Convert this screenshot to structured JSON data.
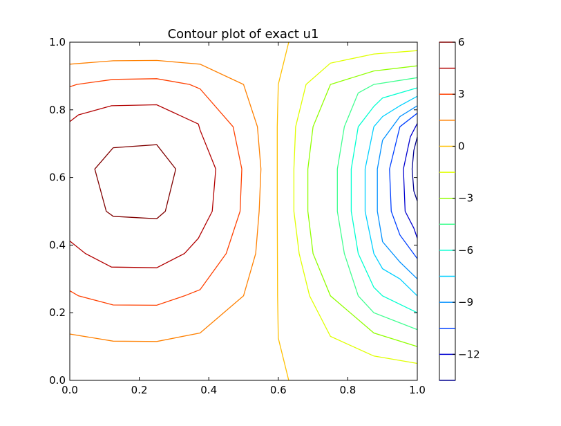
{
  "chart_data": {
    "type": "contour",
    "title": "Contour plot of exact u1",
    "xlabel": "",
    "ylabel": "",
    "xlim": [
      0.0,
      1.0
    ],
    "ylim": [
      0.0,
      1.0
    ],
    "x_ticks": [
      "0.0",
      "0.2",
      "0.4",
      "0.6",
      "0.8",
      "1.0"
    ],
    "y_ticks": [
      "0.0",
      "0.2",
      "0.4",
      "0.6",
      "0.8",
      "1.0"
    ],
    "colorbar": {
      "range": [
        -13.5,
        6.0
      ],
      "tick_labels": [
        {
          "value": 6,
          "label": "6"
        },
        {
          "value": 3,
          "label": "3"
        },
        {
          "value": 0,
          "label": "0"
        },
        {
          "value": -3,
          "label": "−3"
        },
        {
          "value": -6,
          "label": "−6"
        },
        {
          "value": -9,
          "label": "−9"
        },
        {
          "value": -12,
          "label": "−12"
        }
      ]
    },
    "levels": [
      {
        "value": 4.5,
        "color": "#b20000",
        "paths": [
          [
            [
              0.0,
              0.765
            ],
            [
              0.025,
              0.785
            ],
            [
              0.12,
              0.812
            ],
            [
              0.25,
              0.815
            ],
            [
              0.37,
              0.758
            ],
            [
              0.375,
              0.74
            ],
            [
              0.42,
              0.625
            ],
            [
              0.41,
              0.5
            ],
            [
              0.37,
              0.42
            ],
            [
              0.33,
              0.375
            ],
            [
              0.25,
              0.333
            ],
            [
              0.12,
              0.335
            ],
            [
              0.045,
              0.375
            ],
            [
              0.0,
              0.412
            ]
          ]
        ]
      },
      {
        "value": 6.0,
        "color": "#800000",
        "paths": [
          [
            [
              0.125,
              0.688
            ],
            [
              0.25,
              0.697
            ],
            [
              0.305,
              0.625
            ],
            [
              0.275,
              0.5
            ],
            [
              0.25,
              0.478
            ],
            [
              0.125,
              0.485
            ],
            [
              0.105,
              0.5
            ],
            [
              0.072,
              0.625
            ],
            [
              0.125,
              0.688
            ]
          ]
        ]
      },
      {
        "value": 3.0,
        "color": "#ff4000",
        "paths": [
          [
            [
              0.0,
              0.868
            ],
            [
              0.02,
              0.875
            ],
            [
              0.125,
              0.89
            ],
            [
              0.25,
              0.892
            ],
            [
              0.345,
              0.875
            ],
            [
              0.375,
              0.862
            ],
            [
              0.47,
              0.75
            ],
            [
              0.495,
              0.625
            ],
            [
              0.49,
              0.5
            ],
            [
              0.45,
              0.375
            ],
            [
              0.375,
              0.268
            ],
            [
              0.33,
              0.25
            ],
            [
              0.25,
              0.222
            ],
            [
              0.125,
              0.223
            ],
            [
              0.025,
              0.25
            ],
            [
              0.0,
              0.265
            ]
          ]
        ]
      },
      {
        "value": 1.5,
        "color": "#ff8000",
        "paths": [
          [
            [
              0.0,
              0.935
            ],
            [
              0.125,
              0.945
            ],
            [
              0.25,
              0.946
            ],
            [
              0.375,
              0.935
            ],
            [
              0.5,
              0.875
            ],
            [
              0.54,
              0.75
            ],
            [
              0.55,
              0.625
            ],
            [
              0.545,
              0.5
            ],
            [
              0.535,
              0.375
            ],
            [
              0.5,
              0.25
            ],
            [
              0.375,
              0.14
            ],
            [
              0.25,
              0.115
            ],
            [
              0.125,
              0.116
            ],
            [
              0.0,
              0.137
            ]
          ]
        ]
      },
      {
        "value": 0.0,
        "color": "#ffc000",
        "paths": [
          [
            [
              0.63,
              1.0
            ],
            [
              0.6,
              0.875
            ],
            [
              0.597,
              0.75
            ],
            [
              0.597,
              0.5
            ],
            [
              0.598,
              0.25
            ],
            [
              0.6,
              0.125
            ],
            [
              0.63,
              0.0
            ]
          ]
        ]
      },
      {
        "value": -1.5,
        "color": "#e0ff00",
        "paths": [
          [
            [
              1.0,
              0.975
            ],
            [
              0.875,
              0.965
            ],
            [
              0.75,
              0.938
            ],
            [
              0.68,
              0.875
            ],
            [
              0.65,
              0.75
            ],
            [
              0.645,
              0.625
            ],
            [
              0.645,
              0.5
            ],
            [
              0.66,
              0.375
            ],
            [
              0.69,
              0.25
            ],
            [
              0.75,
              0.13
            ],
            [
              0.875,
              0.072
            ],
            [
              1.0,
              0.05
            ]
          ]
        ]
      },
      {
        "value": -3.0,
        "color": "#90ff00",
        "paths": [
          [
            [
              1.0,
              0.93
            ],
            [
              0.875,
              0.915
            ],
            [
              0.75,
              0.875
            ],
            [
              0.7,
              0.75
            ],
            [
              0.685,
              0.625
            ],
            [
              0.685,
              0.5
            ],
            [
              0.7,
              0.375
            ],
            [
              0.75,
              0.25
            ],
            [
              0.875,
              0.14
            ],
            [
              1.0,
              0.1
            ]
          ]
        ]
      },
      {
        "value": -4.5,
        "color": "#40ff90",
        "paths": [
          [
            [
              1.0,
              0.895
            ],
            [
              0.875,
              0.875
            ],
            [
              0.83,
              0.85
            ],
            [
              0.79,
              0.75
            ],
            [
              0.77,
              0.625
            ],
            [
              0.77,
              0.5
            ],
            [
              0.79,
              0.375
            ],
            [
              0.83,
              0.25
            ],
            [
              0.875,
              0.2
            ],
            [
              1.0,
              0.15
            ]
          ]
        ]
      },
      {
        "value": -6.0,
        "color": "#00ffd0",
        "paths": [
          [
            [
              1.0,
              0.865
            ],
            [
              0.9,
              0.835
            ],
            [
              0.875,
              0.81
            ],
            [
              0.83,
              0.75
            ],
            [
              0.81,
              0.625
            ],
            [
              0.81,
              0.5
            ],
            [
              0.83,
              0.375
            ],
            [
              0.875,
              0.275
            ],
            [
              0.9,
              0.25
            ],
            [
              1.0,
              0.2
            ]
          ]
        ]
      },
      {
        "value": -7.5,
        "color": "#00d0ff",
        "paths": [
          [
            [
              1.0,
              0.84
            ],
            [
              0.95,
              0.812
            ],
            [
              0.9,
              0.78
            ],
            [
              0.875,
              0.75
            ],
            [
              0.85,
              0.625
            ],
            [
              0.85,
              0.5
            ],
            [
              0.875,
              0.375
            ],
            [
              0.9,
              0.33
            ],
            [
              0.95,
              0.3
            ],
            [
              1.0,
              0.25
            ]
          ]
        ]
      },
      {
        "value": -9.0,
        "color": "#0090ff",
        "paths": [
          [
            [
              1.0,
              0.812
            ],
            [
              0.95,
              0.78
            ],
            [
              0.9,
              0.71
            ],
            [
              0.885,
              0.625
            ],
            [
              0.885,
              0.5
            ],
            [
              0.9,
              0.41
            ],
            [
              0.95,
              0.35
            ],
            [
              1.0,
              0.3
            ]
          ]
        ]
      },
      {
        "value": -10.5,
        "color": "#0040ff",
        "paths": [
          [
            [
              1.0,
              0.79
            ],
            [
              0.95,
              0.75
            ],
            [
              0.92,
              0.625
            ],
            [
              0.925,
              0.5
            ],
            [
              0.95,
              0.43
            ],
            [
              1.0,
              0.36
            ]
          ]
        ]
      },
      {
        "value": -12.0,
        "color": "#0000d0",
        "paths": [
          [
            [
              1.0,
              0.76
            ],
            [
              0.98,
              0.72
            ],
            [
              0.96,
              0.625
            ],
            [
              0.965,
              0.5
            ],
            [
              0.99,
              0.45
            ],
            [
              1.0,
              0.42
            ]
          ]
        ]
      },
      {
        "value": -13.5,
        "color": "#00008f",
        "paths": [
          [
            [
              1.0,
              0.72
            ],
            [
              0.99,
              0.68
            ],
            [
              0.985,
              0.625
            ],
            [
              0.99,
              0.56
            ],
            [
              1.0,
              0.53
            ]
          ]
        ]
      }
    ]
  }
}
